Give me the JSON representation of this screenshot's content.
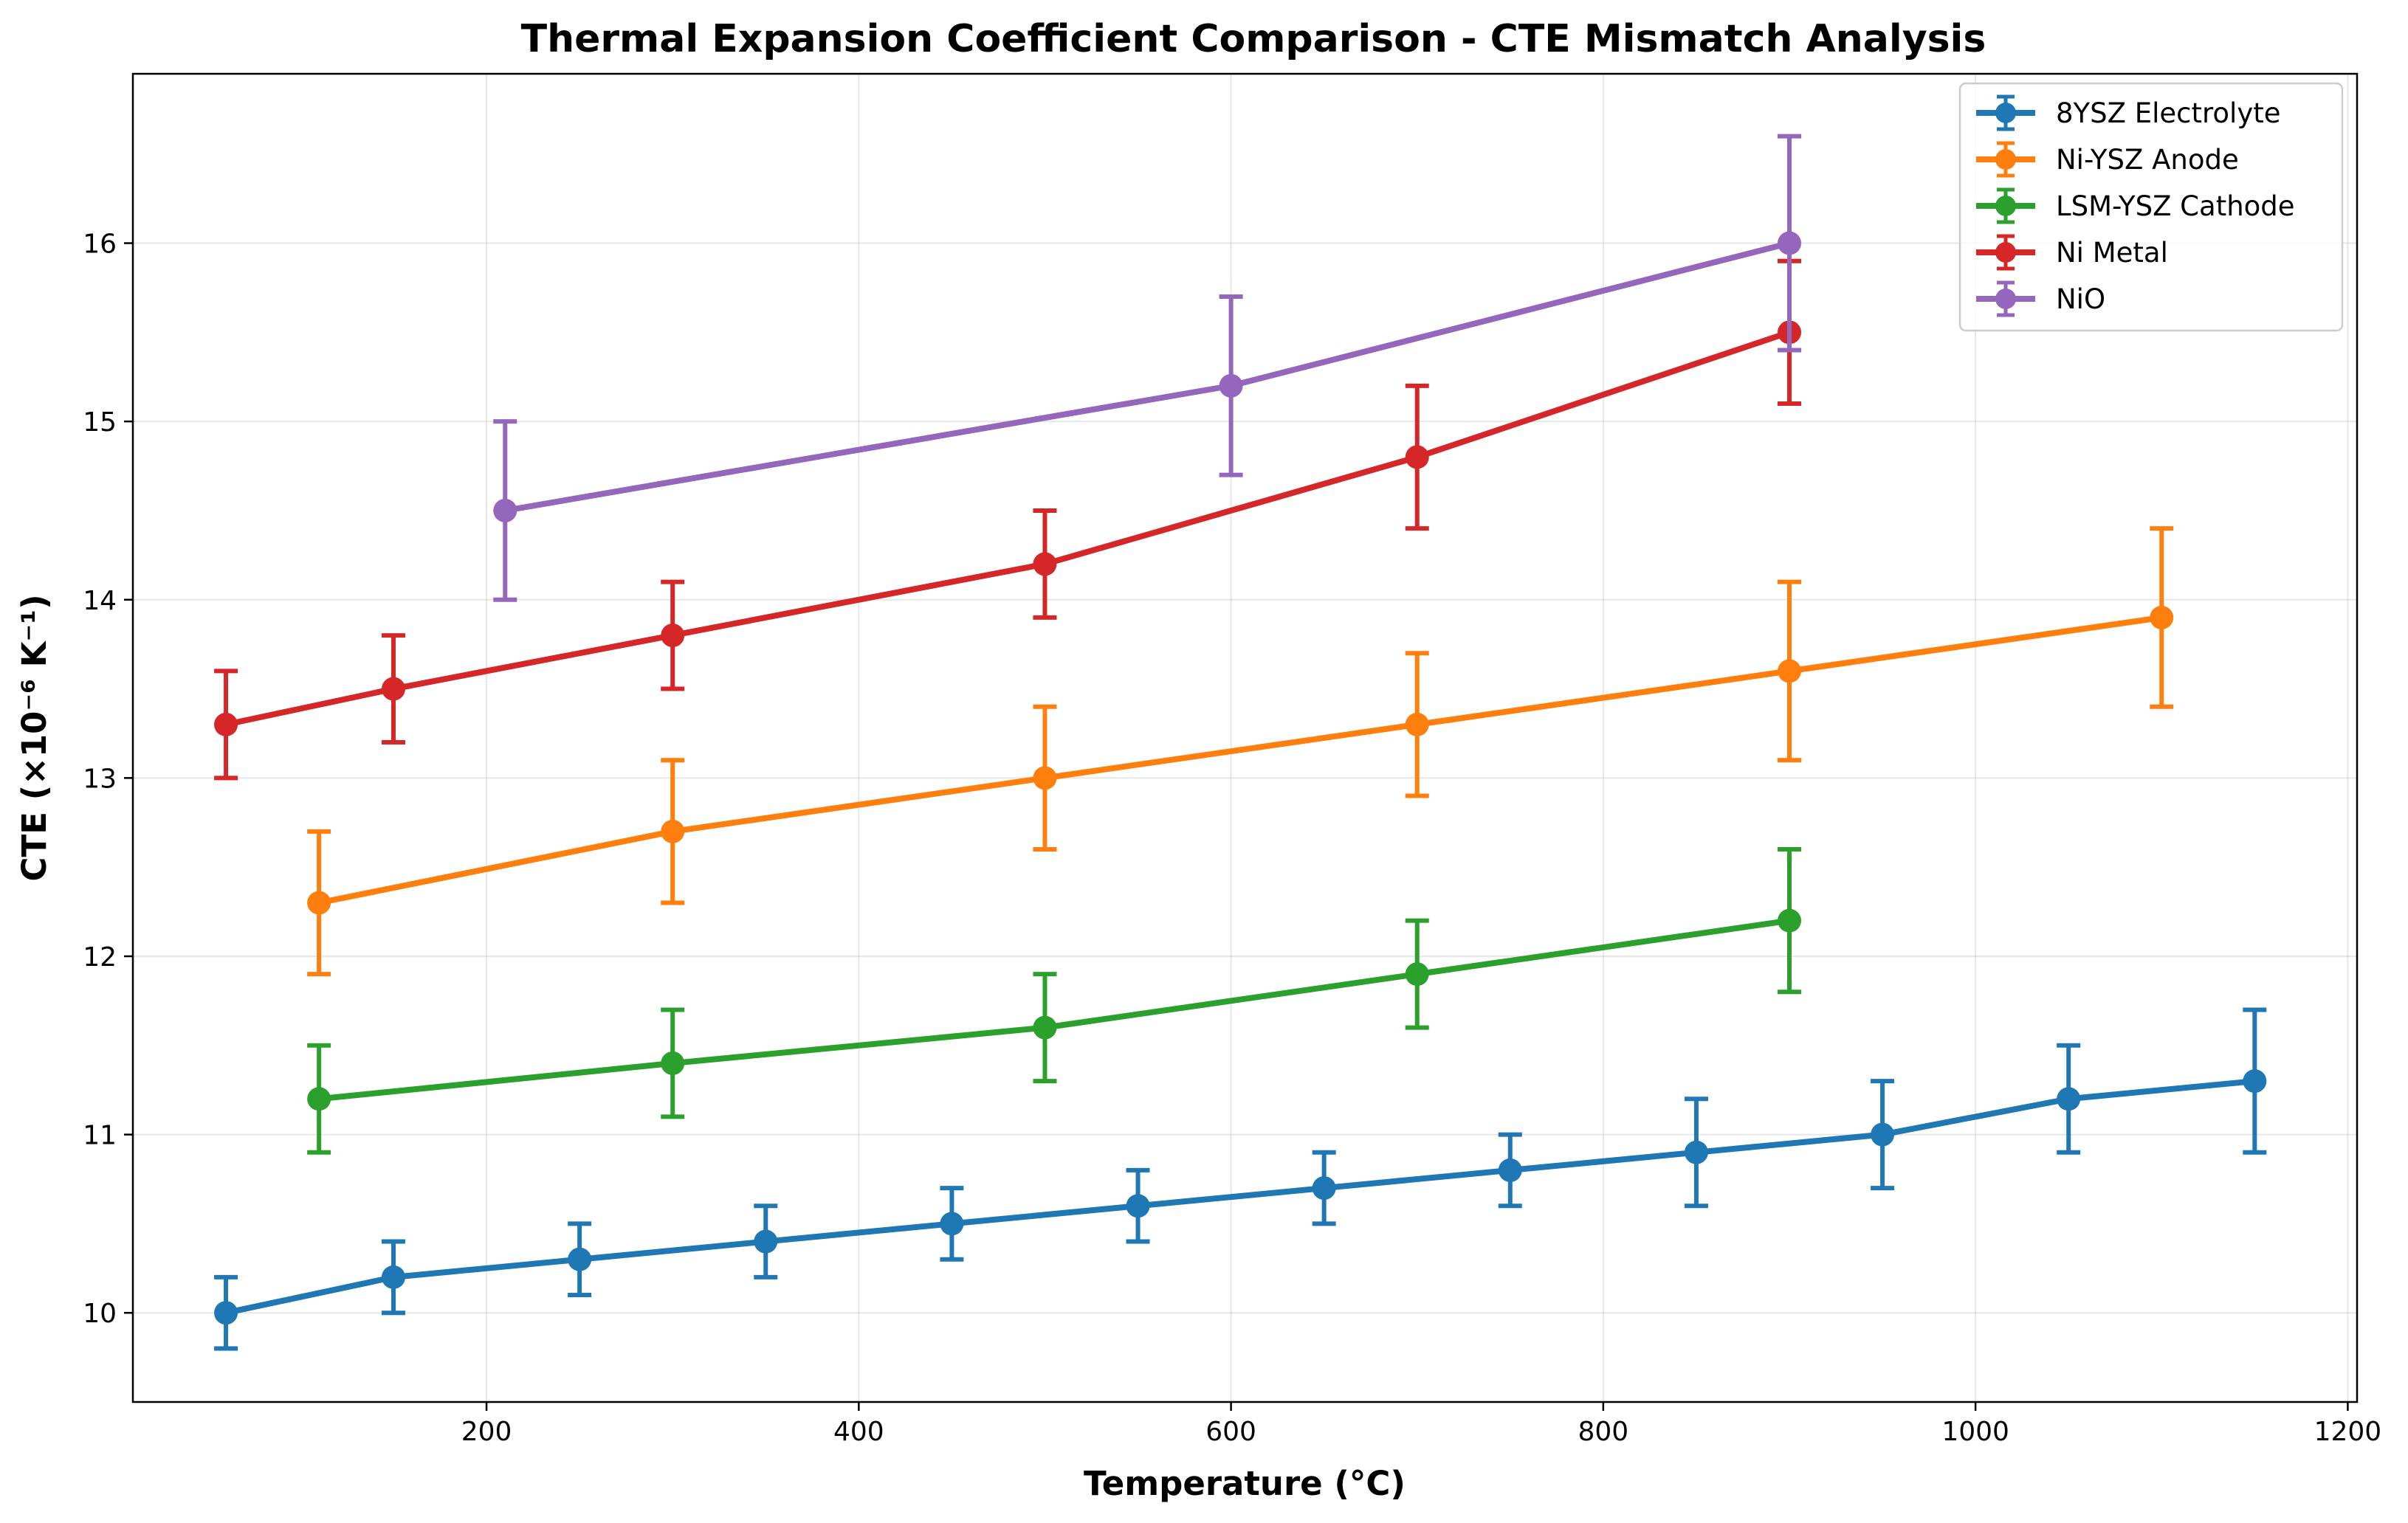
{
  "chart_data": {
    "type": "line",
    "title": "Thermal Expansion Coefficient Comparison - CTE Mismatch Analysis",
    "xlabel": "Temperature (°C)",
    "ylabel": "CTE (×10⁻⁶ K⁻¹)",
    "xlim": [
      10,
      1205
    ],
    "ylim": [
      9.5,
      16.95
    ],
    "xticks": [
      200,
      400,
      600,
      800,
      1000,
      1200
    ],
    "yticks": [
      10,
      11,
      12,
      13,
      14,
      15,
      16
    ],
    "xtick_labels": [
      "200",
      "400",
      "600",
      "800",
      "1000",
      "1200"
    ],
    "ytick_labels": [
      "10",
      "11",
      "12",
      "13",
      "14",
      "15",
      "16"
    ],
    "grid": true,
    "legend_position": "top-right",
    "series": [
      {
        "name": "8YSZ Electrolyte",
        "color": "#1f77b4",
        "x": [
          60,
          150,
          250,
          350,
          450,
          550,
          650,
          750,
          850,
          950,
          1050,
          1150
        ],
        "y": [
          10.0,
          10.2,
          10.3,
          10.4,
          10.5,
          10.6,
          10.7,
          10.8,
          10.9,
          11.0,
          11.2,
          11.3
        ],
        "err": [
          0.2,
          0.2,
          0.2,
          0.2,
          0.2,
          0.2,
          0.2,
          0.2,
          0.3,
          0.3,
          0.3,
          0.4
        ]
      },
      {
        "name": "Ni-YSZ Anode",
        "color": "#ff7f0e",
        "x": [
          110,
          300,
          500,
          700,
          900,
          1100
        ],
        "y": [
          12.3,
          12.7,
          13.0,
          13.3,
          13.6,
          13.9
        ],
        "err": [
          0.4,
          0.4,
          0.4,
          0.4,
          0.5,
          0.5
        ]
      },
      {
        "name": "LSM-YSZ Cathode",
        "color": "#2ca02c",
        "x": [
          110,
          300,
          500,
          700,
          900
        ],
        "y": [
          11.2,
          11.4,
          11.6,
          11.9,
          12.2
        ],
        "err": [
          0.3,
          0.3,
          0.3,
          0.3,
          0.4
        ]
      },
      {
        "name": "Ni Metal",
        "color": "#d62728",
        "x": [
          60,
          150,
          300,
          500,
          700,
          900
        ],
        "y": [
          13.3,
          13.5,
          13.8,
          14.2,
          14.8,
          15.5
        ],
        "err": [
          0.3,
          0.3,
          0.3,
          0.3,
          0.4,
          0.4
        ]
      },
      {
        "name": "NiO",
        "color": "#9467bd",
        "x": [
          210,
          600,
          900
        ],
        "y": [
          14.5,
          15.2,
          16.0
        ],
        "err": [
          0.5,
          0.5,
          0.6
        ]
      }
    ]
  }
}
